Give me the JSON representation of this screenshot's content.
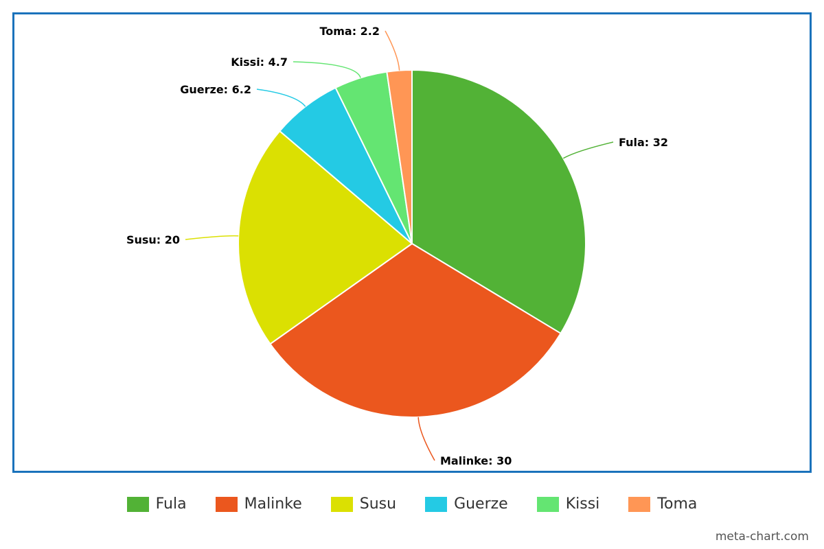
{
  "chart_data": {
    "type": "pie",
    "title": "",
    "categories": [
      "Fula",
      "Malinke",
      "Susu",
      "Guerze",
      "Kissi",
      "Toma"
    ],
    "values": [
      32,
      30,
      20,
      6.2,
      4.7,
      2.2
    ],
    "colors": [
      "#52b236",
      "#eb571e",
      "#dbe002",
      "#24cae4",
      "#64e572",
      "#ff9655"
    ],
    "labels": [
      "Fula: 32",
      "Malinke: 30",
      "Susu: 20",
      "Guerze: 6.2",
      "Kissi: 4.7",
      "Toma: 2.2"
    ],
    "start_angle": "12 o'clock",
    "direction": "clockwise",
    "legend_position": "bottom"
  },
  "legend": {
    "items": [
      {
        "label": "Fula",
        "color": "#52b236"
      },
      {
        "label": "Malinke",
        "color": "#eb571e"
      },
      {
        "label": "Susu",
        "color": "#dbe002"
      },
      {
        "label": "Guerze",
        "color": "#24cae4"
      },
      {
        "label": "Kissi",
        "color": "#64e572"
      },
      {
        "label": "Toma",
        "color": "#ff9655"
      }
    ]
  },
  "watermark": "meta-chart.com",
  "frame_color": "#1a72bb"
}
